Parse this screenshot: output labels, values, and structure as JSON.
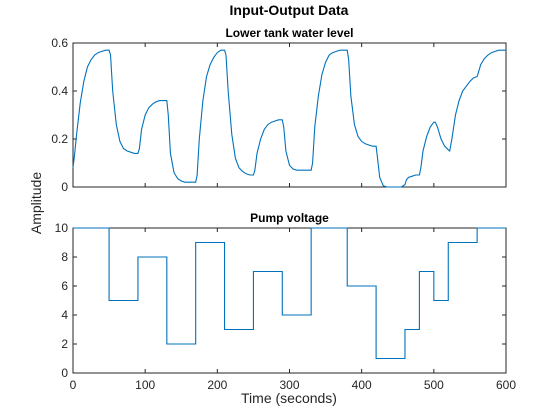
{
  "figure": {
    "title": "Input-Output Data",
    "xlabel": "Time (seconds)",
    "ylabel": "Amplitude"
  },
  "colors": {
    "series": "#0072BD",
    "axes": "#262626"
  },
  "chart_data": [
    {
      "type": "line",
      "title": "Lower tank water level",
      "xlim": [
        0,
        600
      ],
      "ylim": [
        0,
        0.6
      ],
      "xticks": [
        0,
        100,
        200,
        300,
        400,
        500,
        600
      ],
      "xtick_labels": [
        "",
        "",
        "",
        "",
        "",
        "",
        ""
      ],
      "yticks": [
        0,
        0.2,
        0.4,
        0.6
      ],
      "ytick_labels": [
        "0",
        "0.2",
        "0.4",
        "0.6"
      ],
      "grid": false,
      "series": [
        {
          "x": [
            0,
            2,
            5,
            10,
            15,
            20,
            25,
            30,
            35,
            40,
            45,
            50,
            52,
            55,
            60,
            65,
            70,
            75,
            80,
            85,
            90,
            92,
            95,
            100,
            105,
            110,
            115,
            120,
            125,
            130,
            132,
            135,
            140,
            145,
            150,
            155,
            160,
            165,
            170,
            172,
            175,
            180,
            185,
            190,
            195,
            200,
            205,
            210,
            212,
            215,
            220,
            225,
            230,
            235,
            240,
            245,
            250,
            252,
            255,
            260,
            265,
            270,
            275,
            280,
            285,
            290,
            292,
            295,
            300,
            305,
            310,
            315,
            320,
            325,
            330,
            332,
            335,
            340,
            345,
            350,
            355,
            360,
            365,
            370,
            375,
            380,
            382,
            385,
            390,
            395,
            400,
            405,
            410,
            415,
            420,
            422,
            425,
            430,
            435,
            440,
            445,
            450,
            455,
            460,
            462,
            465,
            470,
            475,
            480,
            482,
            485,
            490,
            495,
            500,
            502,
            505,
            510,
            515,
            520,
            522,
            525,
            530,
            535,
            540,
            545,
            550,
            555,
            560,
            562,
            565,
            570,
            575,
            580,
            585,
            590,
            595,
            600
          ],
          "y": [
            0.08,
            0.13,
            0.22,
            0.35,
            0.44,
            0.5,
            0.53,
            0.55,
            0.56,
            0.565,
            0.57,
            0.57,
            0.55,
            0.4,
            0.26,
            0.19,
            0.16,
            0.15,
            0.145,
            0.14,
            0.14,
            0.16,
            0.24,
            0.3,
            0.33,
            0.345,
            0.355,
            0.36,
            0.36,
            0.36,
            0.3,
            0.14,
            0.06,
            0.035,
            0.025,
            0.02,
            0.02,
            0.02,
            0.02,
            0.05,
            0.2,
            0.36,
            0.46,
            0.51,
            0.54,
            0.56,
            0.57,
            0.57,
            0.55,
            0.4,
            0.22,
            0.12,
            0.08,
            0.065,
            0.055,
            0.05,
            0.05,
            0.07,
            0.14,
            0.2,
            0.24,
            0.26,
            0.27,
            0.275,
            0.28,
            0.28,
            0.25,
            0.15,
            0.09,
            0.075,
            0.07,
            0.07,
            0.07,
            0.07,
            0.07,
            0.1,
            0.25,
            0.38,
            0.47,
            0.52,
            0.55,
            0.56,
            0.565,
            0.57,
            0.57,
            0.57,
            0.53,
            0.38,
            0.26,
            0.21,
            0.19,
            0.18,
            0.175,
            0.17,
            0.17,
            0.12,
            0.04,
            0.005,
            0.0,
            0.0,
            0.0,
            0.0,
            0.0,
            0.01,
            0.03,
            0.04,
            0.045,
            0.05,
            0.05,
            0.08,
            0.15,
            0.21,
            0.25,
            0.27,
            0.27,
            0.25,
            0.2,
            0.17,
            0.155,
            0.15,
            0.2,
            0.3,
            0.36,
            0.4,
            0.42,
            0.44,
            0.455,
            0.46,
            0.48,
            0.51,
            0.535,
            0.55,
            0.56,
            0.565,
            0.57,
            0.57,
            0.57
          ]
        }
      ]
    },
    {
      "type": "line",
      "title": "Pump voltage",
      "xlim": [
        0,
        600
      ],
      "ylim": [
        0,
        10
      ],
      "xticks": [
        0,
        100,
        200,
        300,
        400,
        500,
        600
      ],
      "xtick_labels": [
        "0",
        "100",
        "200",
        "300",
        "400",
        "500",
        "600"
      ],
      "yticks": [
        0,
        2,
        4,
        6,
        8,
        10
      ],
      "ytick_labels": [
        "0",
        "2",
        "4",
        "6",
        "8",
        "10"
      ],
      "grid": false,
      "series": [
        {
          "step": true,
          "x": [
            0,
            50,
            90,
            130,
            170,
            210,
            250,
            290,
            330,
            380,
            420,
            460,
            480,
            500,
            520,
            560,
            600
          ],
          "y": [
            10,
            5,
            8,
            2,
            9,
            3,
            7,
            4,
            10,
            6,
            1,
            3,
            7,
            5,
            9,
            10,
            10
          ]
        }
      ]
    }
  ]
}
